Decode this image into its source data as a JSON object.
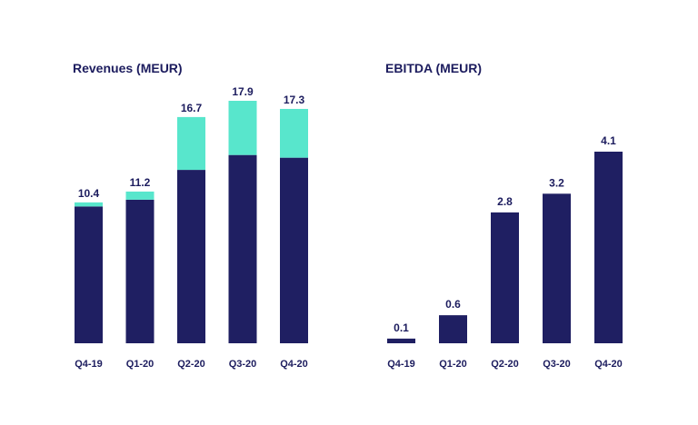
{
  "colors": {
    "primary": "#1f1f62",
    "accent": "#58e6cc",
    "text": "#1c1c5e"
  },
  "chart_data": [
    {
      "type": "bar",
      "stacked": true,
      "title": "Revenues (MEUR)",
      "categories": [
        "Q4-19",
        "Q1-20",
        "Q2-20",
        "Q3-20",
        "Q4-20"
      ],
      "totals": [
        10.4,
        11.2,
        16.7,
        17.9,
        17.3
      ],
      "total_labels": [
        "10.4",
        "11.2",
        "16.7",
        "17.9",
        "17.3"
      ],
      "series": [
        {
          "values": [
            10.1,
            10.6,
            12.8,
            13.9,
            13.7
          ],
          "color": "#1f1f62"
        },
        {
          "values": [
            0.3,
            0.6,
            3.9,
            4.0,
            3.6
          ],
          "color": "#58e6cc"
        }
      ],
      "xlabel": "",
      "ylabel": "",
      "ylim": [
        0,
        17.9
      ],
      "grid": false
    },
    {
      "type": "bar",
      "title": "EBITDA (MEUR)",
      "categories": [
        "Q4-19",
        "Q1-20",
        "Q2-20",
        "Q3-20",
        "Q4-20"
      ],
      "values": [
        0.1,
        0.6,
        2.8,
        3.2,
        4.1
      ],
      "value_labels": [
        "0.1",
        "0.6",
        "2.8",
        "3.2",
        "4.1"
      ],
      "color": "#1f1f62",
      "xlabel": "",
      "ylabel": "",
      "ylim": [
        0,
        4.1
      ],
      "grid": false
    }
  ]
}
